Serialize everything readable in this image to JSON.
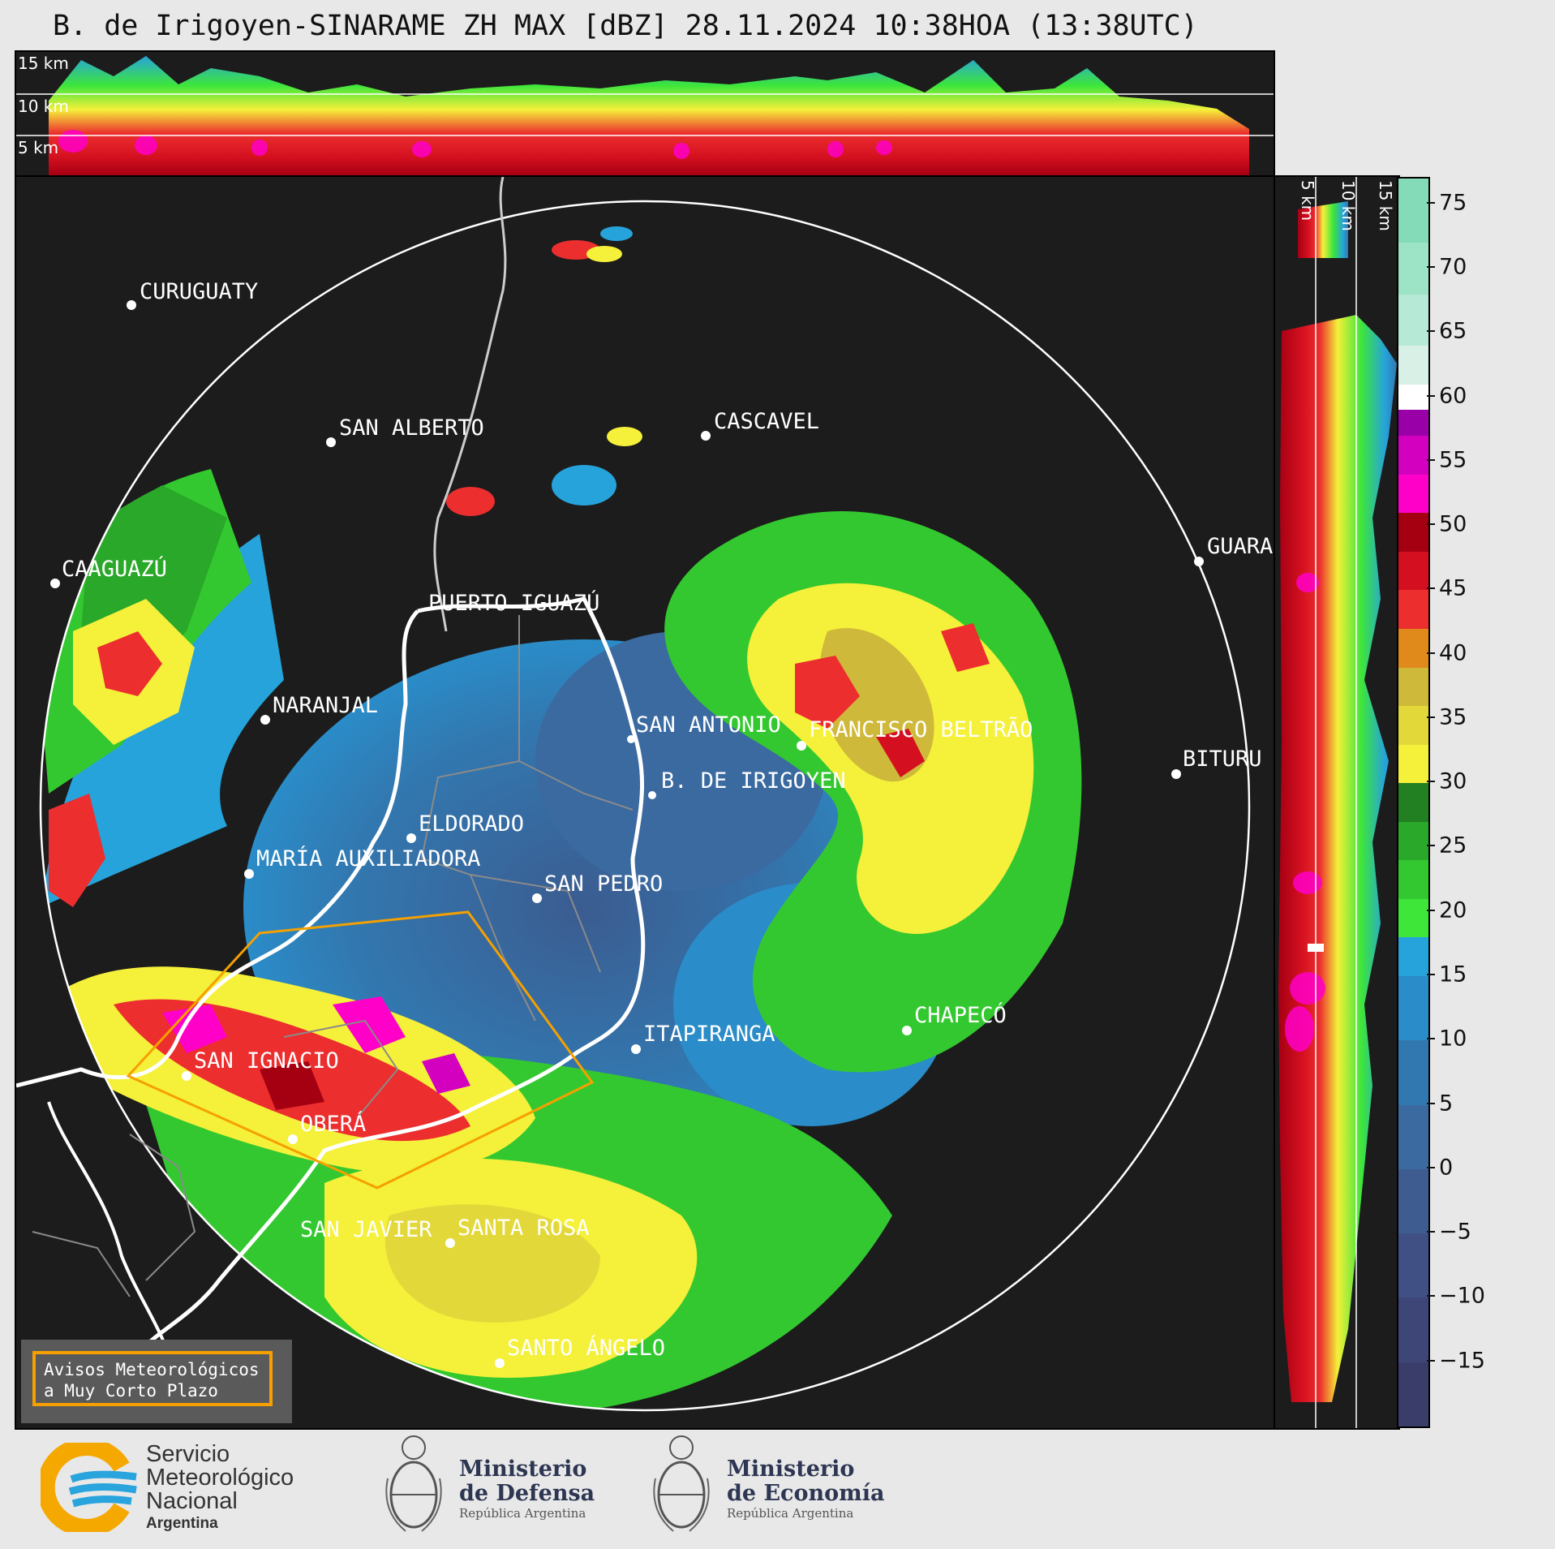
{
  "title": "B. de Irigoyen-SINARAME ZH MAX [dBZ] 28.11.2024 10:38HOA (13:38UTC)",
  "height_labels": {
    "h15": "15 km",
    "h10": "10 km",
    "h5": "5 km"
  },
  "cities": [
    {
      "name": "CURUGUATY"
    },
    {
      "name": "SAN ALBERTO"
    },
    {
      "name": "CASCAVEL"
    },
    {
      "name": "CAAGUAZÚ"
    },
    {
      "name": "GUARA"
    },
    {
      "name": "PUERTO IGUAZÚ"
    },
    {
      "name": "NARANJAL"
    },
    {
      "name": "SAN ANTONIO"
    },
    {
      "name": "FRANCISCO BELTRÃO"
    },
    {
      "name": "BITURU"
    },
    {
      "name": "B. DE IRIGOYEN"
    },
    {
      "name": "ELDORADO"
    },
    {
      "name": "MARÍA AUXILIADORA"
    },
    {
      "name": "SAN PEDRO"
    },
    {
      "name": "CHAPECÓ"
    },
    {
      "name": "ITAPIRANGA"
    },
    {
      "name": "SAN IGNACIO"
    },
    {
      "name": "OBERÁ"
    },
    {
      "name": "SAN JAVIER"
    },
    {
      "name": "SANTA ROSA"
    },
    {
      "name": "SANTO ÁNGELO"
    }
  ],
  "colorbar": {
    "ticks": [
      "75",
      "70",
      "65",
      "60",
      "55",
      "50",
      "45",
      "40",
      "35",
      "30",
      "25",
      "20",
      "15",
      "10",
      "5",
      "0",
      "−5",
      "−10",
      "−15"
    ],
    "range": [
      -20,
      77
    ],
    "colors": [
      {
        "from": -20,
        "to": -15,
        "color": "#3a3d6a"
      },
      {
        "from": -15,
        "to": -10,
        "color": "#3e4678"
      },
      {
        "from": -10,
        "to": -5,
        "color": "#415084"
      },
      {
        "from": -5,
        "to": 0,
        "color": "#3f5c90"
      },
      {
        "from": 0,
        "to": 5,
        "color": "#3b6aa0"
      },
      {
        "from": 5,
        "to": 10,
        "color": "#3278b0"
      },
      {
        "from": 10,
        "to": 15,
        "color": "#2a8cc8"
      },
      {
        "from": 15,
        "to": 18,
        "color": "#26a3db"
      },
      {
        "from": 18,
        "to": 21,
        "color": "#3ee63a"
      },
      {
        "from": 21,
        "to": 24,
        "color": "#34c830"
      },
      {
        "from": 24,
        "to": 27,
        "color": "#2aa82a"
      },
      {
        "from": 27,
        "to": 30,
        "color": "#227f22"
      },
      {
        "from": 30,
        "to": 33,
        "color": "#f5f03a"
      },
      {
        "from": 33,
        "to": 36,
        "color": "#e3d83a"
      },
      {
        "from": 36,
        "to": 39,
        "color": "#cfb93a"
      },
      {
        "from": 39,
        "to": 42,
        "color": "#e08a1c"
      },
      {
        "from": 42,
        "to": 45,
        "color": "#ec2e2e"
      },
      {
        "from": 45,
        "to": 48,
        "color": "#d41020"
      },
      {
        "from": 48,
        "to": 51,
        "color": "#a50012"
      },
      {
        "from": 51,
        "to": 54,
        "color": "#ff00c8"
      },
      {
        "from": 54,
        "to": 57,
        "color": "#d400c0"
      },
      {
        "from": 57,
        "to": 59,
        "color": "#9a00a8"
      },
      {
        "from": 59,
        "to": 61,
        "color": "#ffffff"
      },
      {
        "from": 61,
        "to": 64,
        "color": "#d8f0e6"
      },
      {
        "from": 64,
        "to": 68,
        "color": "#b7ead6"
      },
      {
        "from": 68,
        "to": 72,
        "color": "#9de3c6"
      },
      {
        "from": 72,
        "to": 77,
        "color": "#84dbb8"
      }
    ]
  },
  "warning_box": {
    "line1": "Avisos Meteorológicos",
    "line2": "a Muy Corto Plazo"
  },
  "logos": {
    "smn": {
      "line1": "Servicio",
      "line2": "Meteorológico",
      "line3": "Nacional",
      "sub": "Argentina"
    },
    "defensa": {
      "line1": "Ministerio",
      "line2": "de Defensa",
      "sub": "República Argentina"
    },
    "economia": {
      "line1": "Ministerio",
      "line2": "de Economía",
      "sub": "República Argentina"
    }
  }
}
